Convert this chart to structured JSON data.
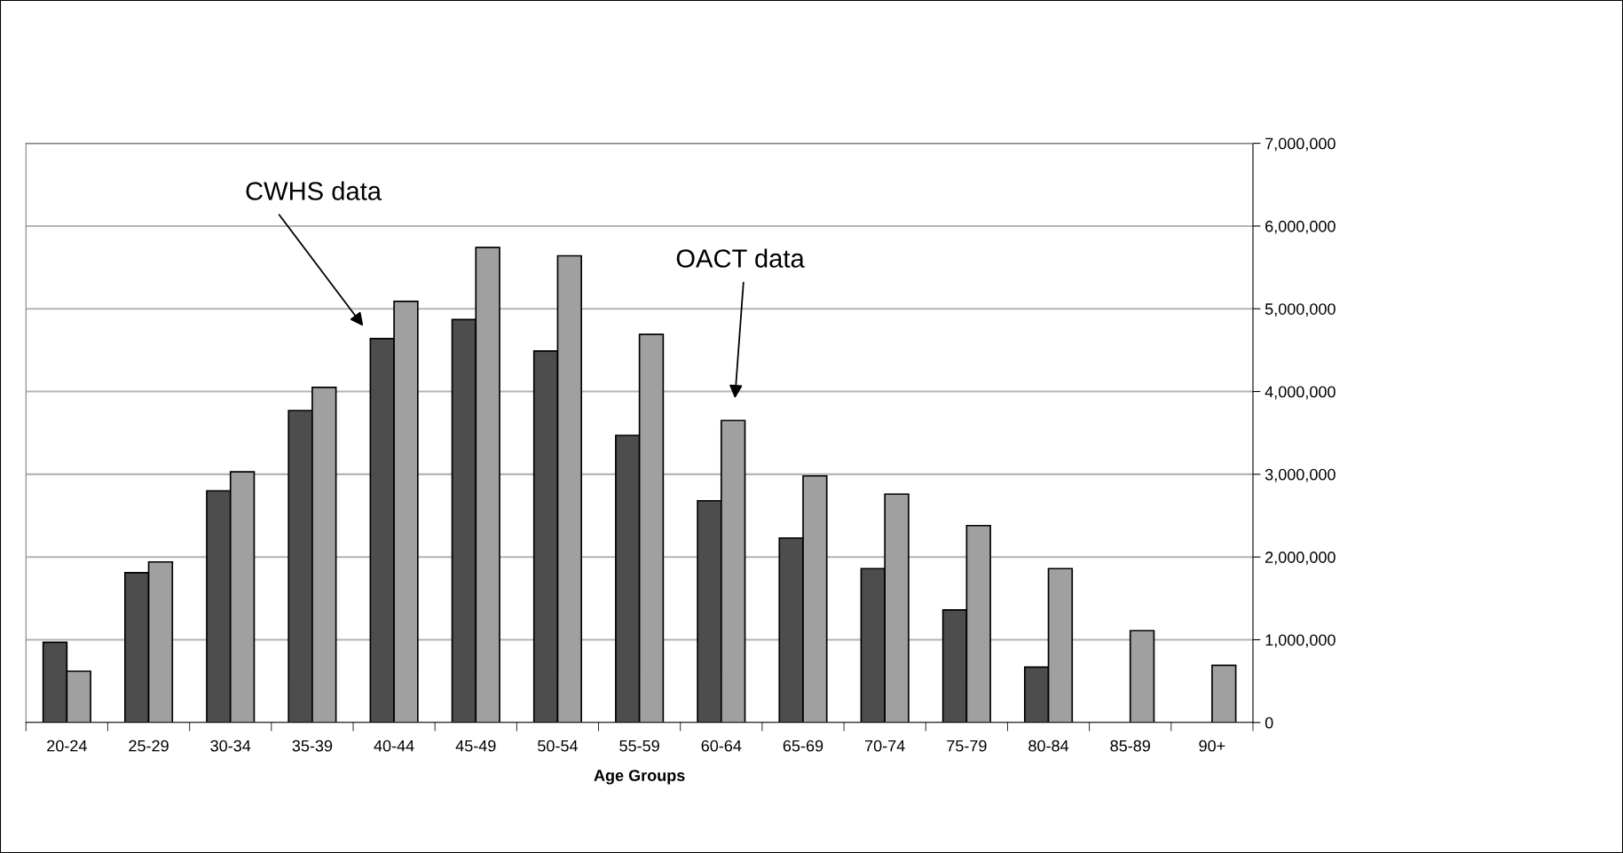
{
  "chart_data": {
    "type": "bar",
    "xlabel": "Age Groups",
    "categories": [
      "20-24",
      "25-29",
      "30-34",
      "35-39",
      "40-44",
      "45-49",
      "50-54",
      "55-59",
      "60-64",
      "65-69",
      "70-74",
      "75-79",
      "80-84",
      "85-89",
      "90+"
    ],
    "series": [
      {
        "color": "#4d4d4d",
        "values": [
          970000,
          1810000,
          2800000,
          3770000,
          4640000,
          4870000,
          4490000,
          3470000,
          2680000,
          2230000,
          1860000,
          1360000,
          670000,
          null,
          null
        ]
      },
      {
        "color": "#a0a0a0",
        "values": [
          620000,
          1940000,
          3030000,
          4050000,
          5090000,
          5740000,
          5640000,
          4690000,
          3650000,
          2980000,
          2760000,
          2380000,
          1860000,
          1110000,
          690000
        ]
      }
    ],
    "ylim": [
      0,
      7000000
    ],
    "yticks": [
      0,
      {
        "value": 1000000,
        "label": "1,000,000"
      },
      {
        "value": 2000000,
        "label": "2,000,000"
      },
      {
        "value": 3000000,
        "label": "3,000,000"
      },
      {
        "value": 4000000,
        "label": "4,000,000"
      },
      {
        "value": 5000000,
        "label": "5,000,000"
      },
      {
        "value": 6000000,
        "label": "6,000,000"
      },
      {
        "value": 7000000,
        "label": "7,000,000"
      }
    ],
    "grid": "y",
    "annotations": [
      "CWHS data",
      "OACT data"
    ]
  }
}
